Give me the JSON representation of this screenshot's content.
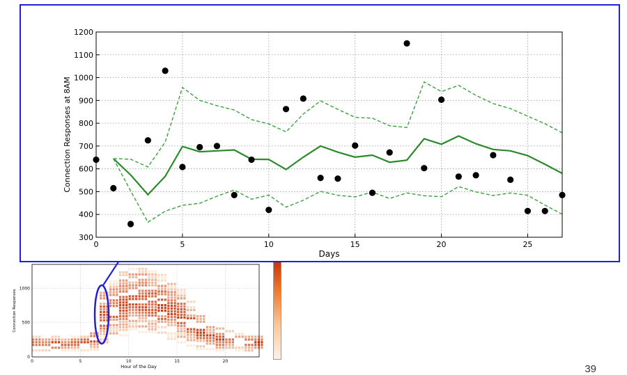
{
  "page_number": "39",
  "colors": {
    "frame": "#1f1fd6",
    "mean_line": "#2a8a2a",
    "bound_line": "#3aa03a",
    "points": "#000000",
    "heat_low": "#fdebd6",
    "heat_high": "#c9340a"
  },
  "chart_data": [
    {
      "type": "scatter",
      "xlabel": "Days",
      "ylabel": "Connection Responses at 8AM",
      "xlim": [
        0,
        27
      ],
      "ylim": [
        300,
        1200
      ],
      "xticks": [
        0,
        5,
        10,
        15,
        20,
        25
      ],
      "xtick_labels": [
        "0",
        "5",
        "10",
        "15",
        "20",
        "25"
      ],
      "yticks": [
        300,
        400,
        500,
        600,
        700,
        800,
        900,
        1000,
        1100,
        1200
      ],
      "ytick_labels": [
        "300",
        "400",
        "500",
        "600",
        "700",
        "800",
        "900",
        "1000",
        "1100",
        "1200"
      ],
      "grid": true,
      "series": [
        {
          "kind": "points",
          "x": [
            0,
            1,
            2,
            3,
            4,
            5,
            6,
            7,
            8,
            9,
            10,
            11,
            12,
            13,
            14,
            15,
            16,
            17,
            18,
            19,
            20,
            21,
            22,
            23,
            24,
            25,
            26,
            27
          ],
          "values": [
            640,
            515,
            358,
            725,
            1030,
            608,
            695,
            700,
            485,
            640,
            420,
            862,
            908,
            560,
            557,
            702,
            495,
            672,
            1150,
            603,
            903,
            566,
            572,
            660,
            552,
            415,
            415,
            485
          ]
        },
        {
          "kind": "mean",
          "x": [
            1,
            2,
            3,
            4,
            5,
            6,
            7,
            8,
            9,
            10,
            11,
            12,
            13,
            14,
            15,
            16,
            17,
            18,
            19,
            20,
            21,
            22,
            23,
            24,
            25,
            26,
            27
          ],
          "values": [
            645,
            573,
            487,
            567,
            698,
            675,
            679,
            683,
            642,
            641,
            597,
            651,
            700,
            673,
            651,
            660,
            629,
            638,
            732,
            708,
            744,
            710,
            685,
            679,
            658,
            620,
            580
          ]
        },
        {
          "kind": "upper",
          "x": [
            1,
            2,
            3,
            4,
            5,
            6,
            7,
            8,
            9,
            10,
            11,
            12,
            13,
            14,
            15,
            16,
            17,
            18,
            19,
            20,
            21,
            22,
            23,
            24,
            25,
            26,
            27
          ],
          "values": [
            645,
            642,
            608,
            717,
            957,
            900,
            877,
            858,
            816,
            797,
            762,
            840,
            898,
            861,
            826,
            822,
            789,
            781,
            981,
            939,
            966,
            922,
            886,
            864,
            831,
            798,
            758
          ]
        },
        {
          "kind": "lower",
          "x": [
            1,
            2,
            3,
            4,
            5,
            6,
            7,
            8,
            9,
            10,
            11,
            12,
            13,
            14,
            15,
            16,
            17,
            18,
            19,
            20,
            21,
            22,
            23,
            24,
            25,
            26,
            27
          ],
          "values": [
            645,
            503,
            366,
            414,
            440,
            449,
            480,
            507,
            467,
            485,
            432,
            462,
            501,
            484,
            477,
            498,
            470,
            494,
            482,
            478,
            522,
            499,
            483,
            494,
            484,
            441,
            401
          ]
        }
      ]
    },
    {
      "type": "heatmap",
      "xlabel": "Hour of the Day",
      "ylabel": "Connection Responses",
      "xlim": [
        0,
        23.5
      ],
      "ylim": [
        0,
        1350
      ],
      "xticks": [
        0,
        5,
        10,
        15,
        20
      ],
      "xtick_labels": [
        "0",
        "5",
        "10",
        "15",
        "20"
      ],
      "yticks": [
        0,
        500,
        1000
      ],
      "ytick_labels": [
        "0",
        "500",
        "1000"
      ],
      "columns": [
        {
          "hour": 0,
          "range": [
            80,
            300
          ]
        },
        {
          "hour": 1,
          "range": [
            80,
            280
          ]
        },
        {
          "hour": 2,
          "range": [
            80,
            280
          ]
        },
        {
          "hour": 3,
          "range": [
            80,
            270
          ]
        },
        {
          "hour": 4,
          "range": [
            80,
            280
          ]
        },
        {
          "hour": 5,
          "range": [
            80,
            300
          ]
        },
        {
          "hour": 6,
          "range": [
            90,
            360
          ]
        },
        {
          "hour": 7,
          "range": [
            200,
            1000
          ]
        },
        {
          "hour": 8,
          "range": [
            250,
            1150
          ]
        },
        {
          "hour": 9,
          "range": [
            300,
            1250
          ]
        },
        {
          "hour": 10,
          "range": [
            350,
            1300
          ]
        },
        {
          "hour": 11,
          "range": [
            350,
            1300
          ]
        },
        {
          "hour": 12,
          "range": [
            350,
            1250
          ]
        },
        {
          "hour": 13,
          "range": [
            300,
            1200
          ]
        },
        {
          "hour": 14,
          "range": [
            250,
            1100
          ]
        },
        {
          "hour": 15,
          "range": [
            200,
            1000
          ]
        },
        {
          "hour": 16,
          "range": [
            150,
            800
          ]
        },
        {
          "hour": 17,
          "range": [
            100,
            600
          ]
        },
        {
          "hour": 18,
          "range": [
            100,
            450
          ]
        },
        {
          "hour": 19,
          "range": [
            80,
            400
          ]
        },
        {
          "hour": 20,
          "range": [
            80,
            380
          ]
        },
        {
          "hour": 21,
          "range": [
            80,
            350
          ]
        },
        {
          "hour": 22,
          "range": [
            80,
            320
          ]
        },
        {
          "hour": 23,
          "range": [
            80,
            300
          ]
        }
      ],
      "highlighted_hour": 7
    }
  ]
}
